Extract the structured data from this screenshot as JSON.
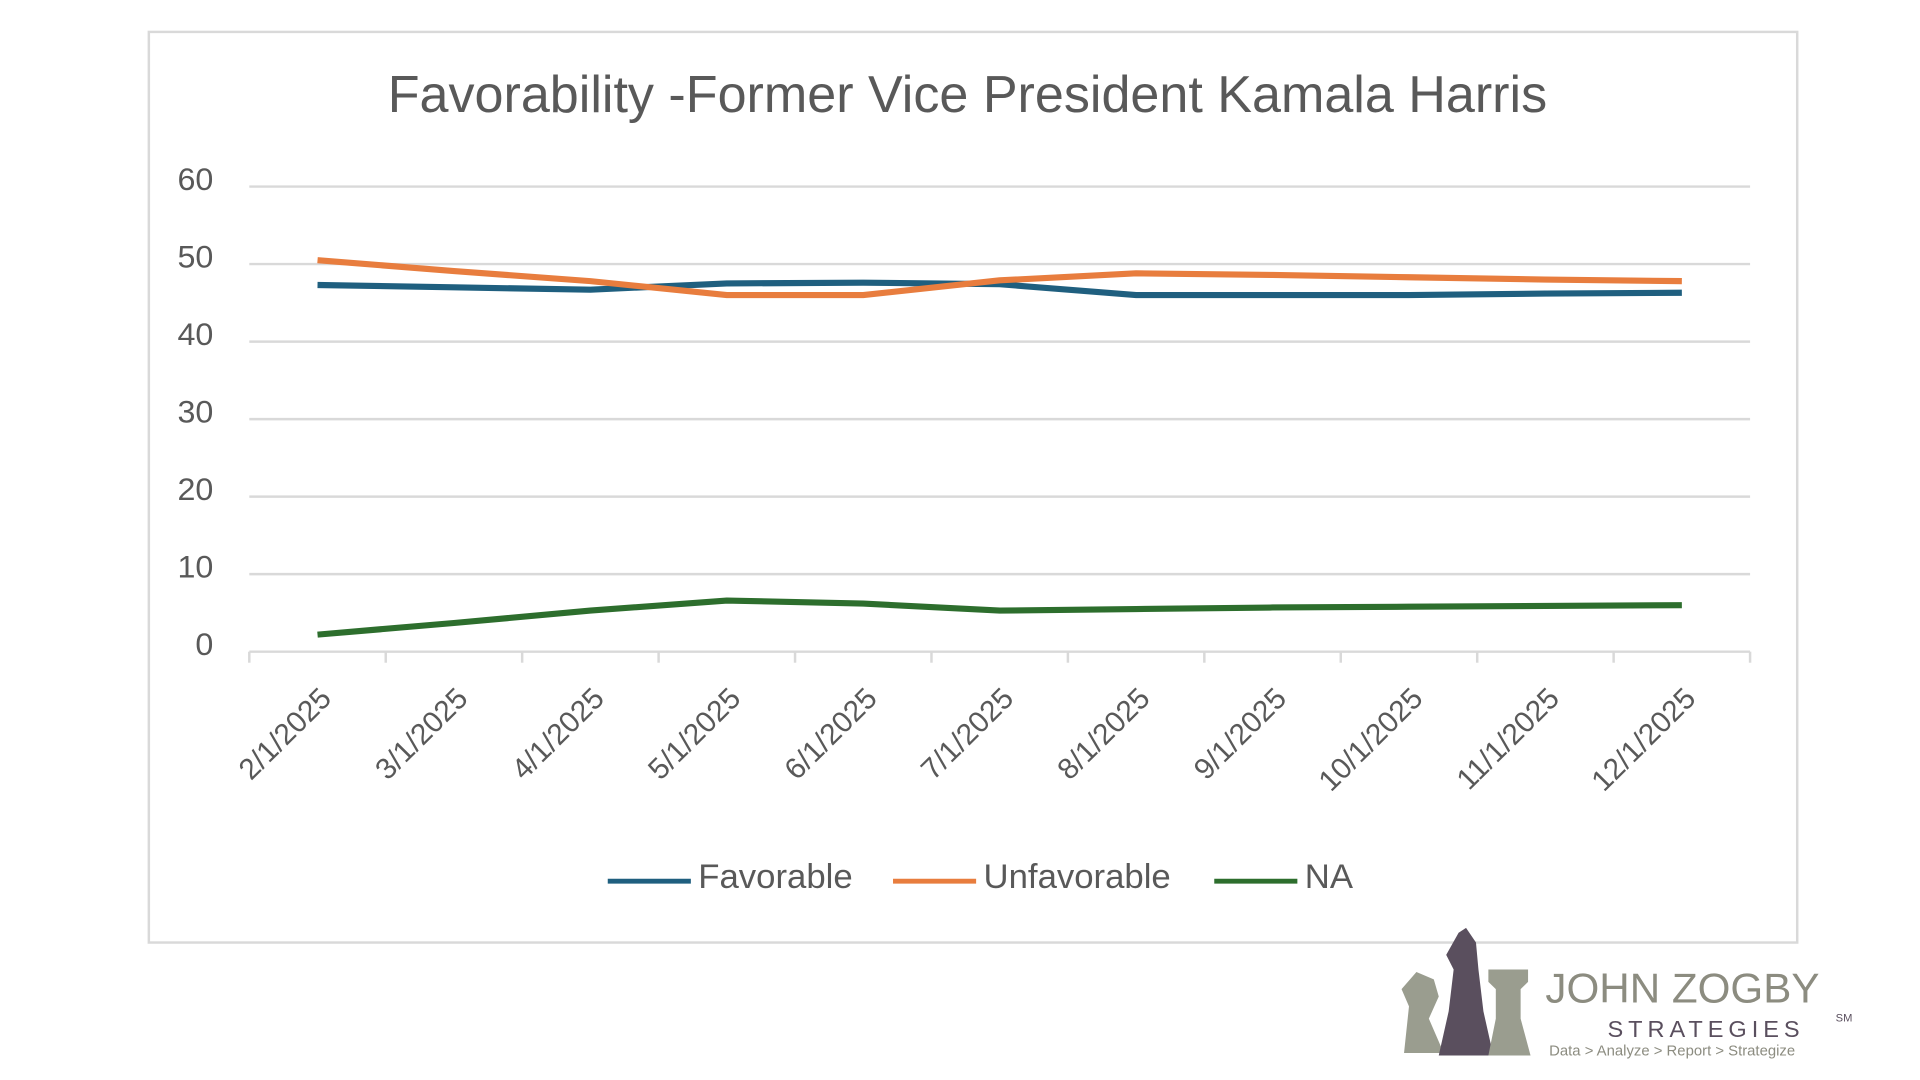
{
  "chart_data": {
    "type": "line",
    "title": "Favorability -Former Vice President Kamala Harris",
    "categories": [
      "2/1/2025",
      "3/1/2025",
      "4/1/2025",
      "5/1/2025",
      "6/1/2025",
      "7/1/2025",
      "8/1/2025",
      "9/1/2025",
      "10/1/2025",
      "11/1/2025",
      "12/1/2025"
    ],
    "series": [
      {
        "name": "Favorable",
        "color": "#1f5f7f",
        "values": [
          47.3,
          47,
          46.7,
          47.5,
          47.6,
          47.4,
          46,
          46,
          46,
          46.2,
          46.3
        ]
      },
      {
        "name": "Unfavorable",
        "color": "#e87d3e",
        "values": [
          50.5,
          49.1,
          47.8,
          46,
          46,
          47.9,
          48.8,
          48.6,
          48.3,
          48,
          47.8
        ]
      },
      {
        "name": "NA",
        "color": "#2d6e2d",
        "values": [
          2.2,
          3.7,
          5.3,
          6.6,
          6.2,
          5.3,
          5.5,
          5.7,
          5.8,
          5.9,
          6
        ]
      }
    ],
    "ylim": [
      0,
      60
    ],
    "yticks": [
      0,
      10,
      20,
      30,
      40,
      50,
      60
    ],
    "grid": true,
    "legend": "bottom"
  },
  "logo": {
    "name": "JOHN ZOGBY",
    "sub": "STRATEGIES",
    "service_mark": "SM",
    "tagline": "Data > Analyze > Report > Strategize"
  }
}
